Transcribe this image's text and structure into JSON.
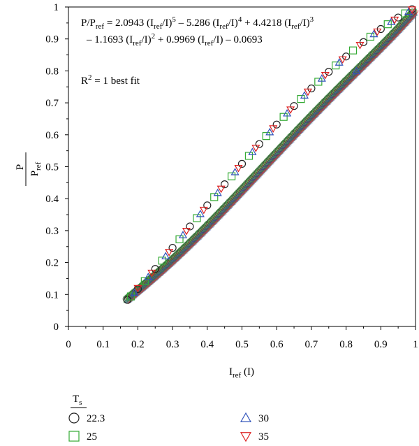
{
  "chart_data": {
    "type": "scatter",
    "title": "",
    "xlabel": {
      "main": "I",
      "sub": "ref",
      "tail": " (I)"
    },
    "ylabel": {
      "num": "P",
      "den_main": "P",
      "den_sub": "ref"
    },
    "xlim": [
      0,
      1
    ],
    "ylim": [
      0,
      1
    ],
    "xticks": [
      "0",
      "0.1",
      "0.2",
      "0.3",
      "0.4",
      "0.5",
      "0.6",
      "0.7",
      "0.8",
      "0.9",
      "1"
    ],
    "yticks": [
      "0",
      "0.1",
      "0.2",
      "0.3",
      "0.4",
      "0.5",
      "0.6",
      "0.7",
      "0.8",
      "0.9",
      "1"
    ],
    "grid": false,
    "equation_line1": [
      {
        "t": "P/P"
      },
      {
        "t": "ref",
        "s": "sub"
      },
      {
        "t": " = 2.0943 (I"
      },
      {
        "t": "ref",
        "s": "sub"
      },
      {
        "t": "/I)"
      },
      {
        "t": "5",
        "s": "sup"
      },
      {
        "t": " – 5.286 (I"
      },
      {
        "t": "ref",
        "s": "sub"
      },
      {
        "t": "/I)"
      },
      {
        "t": "4",
        "s": "sup"
      },
      {
        "t": " + 4.4218 (I"
      },
      {
        "t": "ref",
        "s": "sub"
      },
      {
        "t": "/I)"
      },
      {
        "t": "3",
        "s": "sup"
      }
    ],
    "equation_line2": [
      {
        "t": "– 1.1693 (I"
      },
      {
        "t": "ref",
        "s": "sub"
      },
      {
        "t": "/I)"
      },
      {
        "t": "2",
        "s": "sup"
      },
      {
        "t": " + 0.9969 (I"
      },
      {
        "t": "ref",
        "s": "sub"
      },
      {
        "t": "/I) – 0.0693"
      }
    ],
    "r2_text": [
      {
        "t": "R"
      },
      {
        "t": "2",
        "s": "sup"
      },
      {
        "t": " = 1 best fit"
      }
    ],
    "legend": {
      "title_main": "T",
      "title_sub": "s",
      "placement": "bottom-left"
    },
    "series": [
      {
        "name": "22.3",
        "marker": "circle",
        "color": "#222222",
        "x": [
          0.17,
          0.2,
          0.25,
          0.3,
          0.35,
          0.4,
          0.45,
          0.5,
          0.55,
          0.6,
          0.65,
          0.7,
          0.75,
          0.8,
          0.85,
          0.9,
          0.95,
          0.99
        ],
        "y": [
          0.083,
          0.117,
          0.18,
          0.246,
          0.313,
          0.379,
          0.445,
          0.509,
          0.571,
          0.632,
          0.69,
          0.745,
          0.797,
          0.845,
          0.89,
          0.931,
          0.967,
          0.993
        ]
      },
      {
        "name": "25",
        "marker": "square",
        "color": "#33aa33",
        "x": [
          0.18,
          0.22,
          0.27,
          0.32,
          0.37,
          0.42,
          0.47,
          0.52,
          0.57,
          0.62,
          0.67,
          0.72,
          0.77,
          0.82,
          0.87,
          0.92,
          0.97
        ],
        "y": [
          0.094,
          0.142,
          0.206,
          0.273,
          0.339,
          0.405,
          0.47,
          0.534,
          0.596,
          0.656,
          0.712,
          0.766,
          0.817,
          0.864,
          0.907,
          0.946,
          0.98
        ]
      },
      {
        "name": "30",
        "marker": "triangle-up",
        "color": "#3355bb",
        "x": [
          0.19,
          0.23,
          0.28,
          0.33,
          0.38,
          0.43,
          0.48,
          0.53,
          0.58,
          0.63,
          0.68,
          0.73,
          0.78,
          0.83,
          0.88,
          0.93,
          0.98
        ],
        "y": [
          0.106,
          0.155,
          0.22,
          0.286,
          0.352,
          0.418,
          0.483,
          0.546,
          0.608,
          0.667,
          0.723,
          0.776,
          0.826,
          0.8,
          0.915,
          0.953,
          0.985
        ]
      },
      {
        "name": "35",
        "marker": "triangle-down",
        "color": "#dd2222",
        "x": [
          0.2,
          0.24,
          0.29,
          0.34,
          0.39,
          0.44,
          0.49,
          0.54,
          0.59,
          0.64,
          0.69,
          0.74,
          0.79,
          0.84,
          0.89,
          0.94,
          0.99
        ],
        "y": [
          0.12,
          0.168,
          0.233,
          0.299,
          0.365,
          0.431,
          0.496,
          0.559,
          0.62,
          0.679,
          0.735,
          0.787,
          0.836,
          0.881,
          0.923,
          0.96,
          0.992
        ]
      }
    ]
  }
}
